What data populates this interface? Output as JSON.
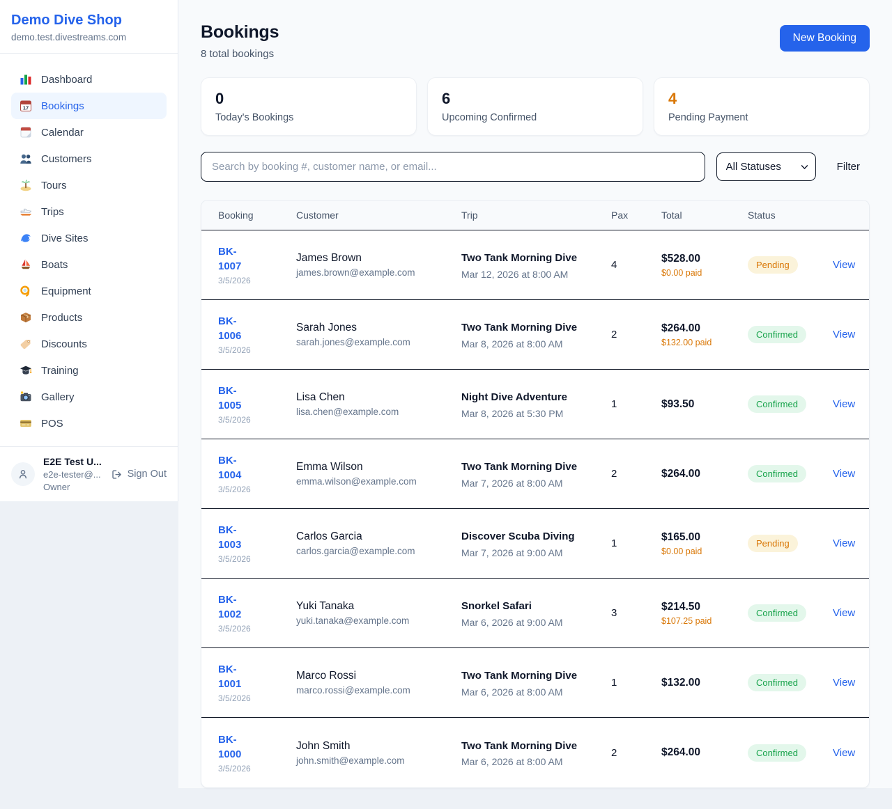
{
  "sidebar": {
    "shop_name": "Demo Dive Shop",
    "shop_domain": "demo.test.divestreams.com",
    "active_item": "Bookings",
    "items": [
      {
        "label": "Dashboard",
        "icon": "bar-chart"
      },
      {
        "label": "Bookings",
        "icon": "calendar-17"
      },
      {
        "label": "Calendar",
        "icon": "tear-calendar"
      },
      {
        "label": "Customers",
        "icon": "two-people"
      },
      {
        "label": "Tours",
        "icon": "palm-island"
      },
      {
        "label": "Trips",
        "icon": "speedboat"
      },
      {
        "label": "Dive Sites",
        "icon": "wave"
      },
      {
        "label": "Boats",
        "icon": "sailboat"
      },
      {
        "label": "Equipment",
        "icon": "dive-mask"
      },
      {
        "label": "Products",
        "icon": "package-box"
      },
      {
        "label": "Discounts",
        "icon": "price-tag"
      },
      {
        "label": "Training",
        "icon": "graduation-cap"
      },
      {
        "label": "Gallery",
        "icon": "camera"
      },
      {
        "label": "POS",
        "icon": "credit-card"
      }
    ],
    "user": {
      "name": "E2E Test U...",
      "email": "e2e-tester@...",
      "role": "Owner",
      "sign_out_label": "Sign Out"
    }
  },
  "header": {
    "title": "Bookings",
    "subtitle": "8 total bookings",
    "new_booking_label": "New Booking"
  },
  "stats": [
    {
      "value": "0",
      "label": "Today's Bookings",
      "accent": "dark"
    },
    {
      "value": "6",
      "label": "Upcoming Confirmed",
      "accent": "dark"
    },
    {
      "value": "4",
      "label": "Pending Payment",
      "accent": "orange"
    }
  ],
  "filters": {
    "search_placeholder": "Search by booking #, customer name, or email...",
    "status_selected": "All Statuses",
    "filter_label": "Filter"
  },
  "table": {
    "columns": [
      "Booking",
      "Customer",
      "Trip",
      "Pax",
      "Total",
      "Status"
    ],
    "view_label": "View",
    "rows": [
      {
        "id": "BK-1007",
        "date": "3/5/2026",
        "customer": "James Brown",
        "email": "james.brown@example.com",
        "trip": "Two Tank Morning Dive",
        "trip_time": "Mar 12, 2026 at 8:00 AM",
        "pax": "4",
        "total": "$528.00",
        "paid": "$0.00 paid",
        "status": "Pending"
      },
      {
        "id": "BK-1006",
        "date": "3/5/2026",
        "customer": "Sarah Jones",
        "email": "sarah.jones@example.com",
        "trip": "Two Tank Morning Dive",
        "trip_time": "Mar 8, 2026 at 8:00 AM",
        "pax": "2",
        "total": "$264.00",
        "paid": "$132.00 paid",
        "status": "Confirmed"
      },
      {
        "id": "BK-1005",
        "date": "3/5/2026",
        "customer": "Lisa Chen",
        "email": "lisa.chen@example.com",
        "trip": "Night Dive Adventure",
        "trip_time": "Mar 8, 2026 at 5:30 PM",
        "pax": "1",
        "total": "$93.50",
        "paid": "",
        "status": "Confirmed"
      },
      {
        "id": "BK-1004",
        "date": "3/5/2026",
        "customer": "Emma Wilson",
        "email": "emma.wilson@example.com",
        "trip": "Two Tank Morning Dive",
        "trip_time": "Mar 7, 2026 at 8:00 AM",
        "pax": "2",
        "total": "$264.00",
        "paid": "",
        "status": "Confirmed"
      },
      {
        "id": "BK-1003",
        "date": "3/5/2026",
        "customer": "Carlos Garcia",
        "email": "carlos.garcia@example.com",
        "trip": "Discover Scuba Diving",
        "trip_time": "Mar 7, 2026 at 9:00 AM",
        "pax": "1",
        "total": "$165.00",
        "paid": "$0.00 paid",
        "status": "Pending"
      },
      {
        "id": "BK-1002",
        "date": "3/5/2026",
        "customer": "Yuki Tanaka",
        "email": "yuki.tanaka@example.com",
        "trip": "Snorkel Safari",
        "trip_time": "Mar 6, 2026 at 9:00 AM",
        "pax": "3",
        "total": "$214.50",
        "paid": "$107.25 paid",
        "status": "Confirmed"
      },
      {
        "id": "BK-1001",
        "date": "3/5/2026",
        "customer": "Marco Rossi",
        "email": "marco.rossi@example.com",
        "trip": "Two Tank Morning Dive",
        "trip_time": "Mar 6, 2026 at 8:00 AM",
        "pax": "1",
        "total": "$132.00",
        "paid": "",
        "status": "Confirmed"
      },
      {
        "id": "BK-1000",
        "date": "3/5/2026",
        "customer": "John Smith",
        "email": "john.smith@example.com",
        "trip": "Two Tank Morning Dive",
        "trip_time": "Mar 6, 2026 at 8:00 AM",
        "pax": "2",
        "total": "$264.00",
        "paid": "",
        "status": "Confirmed"
      }
    ]
  },
  "colors": {
    "accent_blue": "#2563EB",
    "pending_text": "#D97706",
    "pending_bg": "#FBF3DA",
    "confirmed_text": "#16A34A",
    "confirmed_bg": "#E3F7EB",
    "paid_orange": "#D97706",
    "dark_text": "#0F172A",
    "muted_text": "#64748B"
  }
}
